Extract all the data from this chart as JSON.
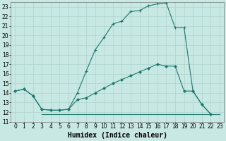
{
  "color": "#1a7a6a",
  "bg_color": "#c8e8e4",
  "grid_color": "#aed4d0",
  "xlabel": "Humidex (Indice chaleur)",
  "xlim": [
    -0.5,
    23.5
  ],
  "ylim": [
    11,
    23.5
  ],
  "xticks": [
    0,
    1,
    2,
    3,
    4,
    5,
    6,
    7,
    8,
    9,
    10,
    11,
    12,
    13,
    14,
    15,
    16,
    17,
    18,
    19,
    20,
    21,
    22,
    23
  ],
  "yticks": [
    11,
    12,
    13,
    14,
    15,
    16,
    17,
    18,
    19,
    20,
    21,
    22,
    23
  ],
  "xlabel_fontsize": 7,
  "tick_fontsize": 5.5,
  "line1_x": [
    0,
    1,
    2,
    3,
    4,
    5,
    6,
    7,
    8,
    9,
    10,
    11,
    12,
    13,
    14,
    15,
    16,
    17,
    18,
    19,
    20,
    21,
    22
  ],
  "line1_y": [
    14.2,
    14.4,
    13.7,
    12.3,
    12.2,
    12.2,
    12.3,
    14.0,
    16.3,
    18.5,
    19.8,
    21.2,
    21.5,
    22.5,
    22.6,
    23.1,
    23.3,
    23.4,
    20.8,
    20.8,
    14.2,
    12.8,
    11.8
  ],
  "line2_x": [
    0,
    1,
    2,
    3,
    4,
    5,
    6,
    7,
    8,
    9,
    10,
    11,
    12,
    13,
    14,
    15,
    16,
    17,
    18,
    19,
    20,
    21,
    22
  ],
  "line2_y": [
    14.2,
    14.4,
    13.7,
    12.3,
    12.2,
    12.2,
    12.3,
    13.3,
    13.5,
    14.0,
    14.5,
    15.0,
    15.4,
    15.8,
    16.2,
    16.6,
    17.0,
    16.8,
    16.8,
    14.2,
    14.2,
    12.8,
    11.8
  ],
  "line3_x": [
    3,
    4,
    5,
    6,
    7,
    8,
    9,
    10,
    11,
    12,
    13,
    14,
    15,
    16,
    17,
    18,
    19,
    20,
    21,
    22,
    23
  ],
  "line3_y": [
    11.8,
    11.8,
    11.8,
    11.8,
    11.8,
    11.8,
    11.8,
    11.8,
    11.8,
    11.8,
    11.8,
    11.8,
    11.8,
    11.8,
    11.8,
    11.8,
    11.8,
    11.8,
    11.8,
    11.8,
    11.8
  ]
}
